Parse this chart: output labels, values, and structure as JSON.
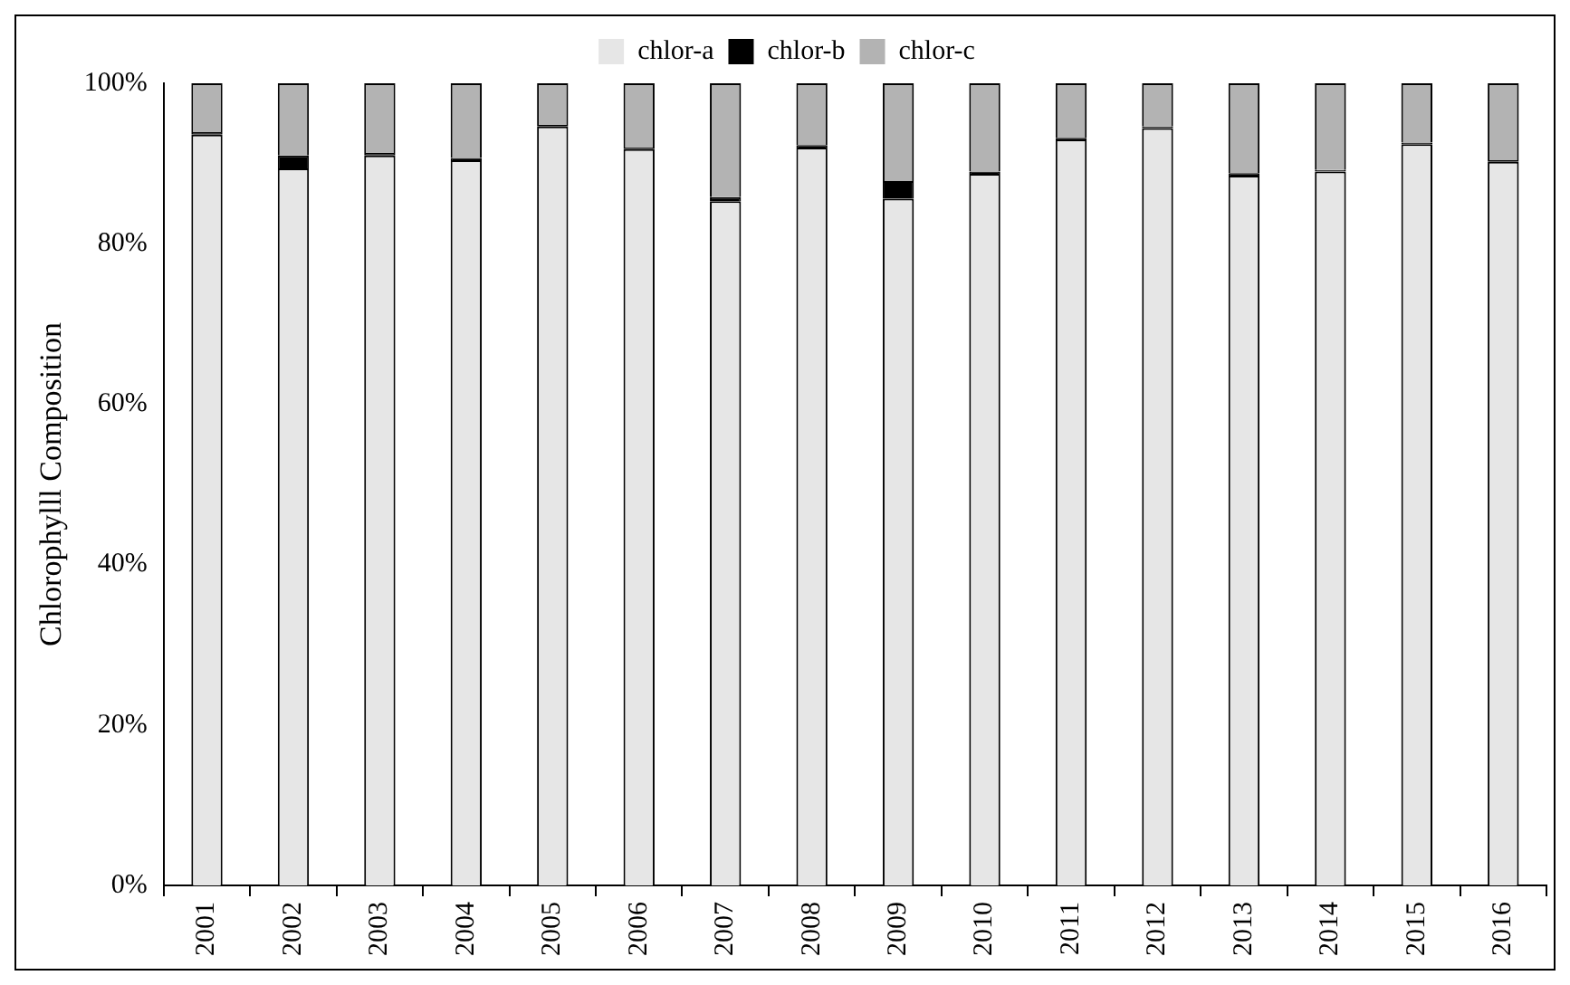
{
  "chart_data": {
    "type": "bar",
    "stacked": true,
    "ylabel": "Chlorophylll Composition",
    "categories": [
      "2001",
      "2002",
      "2003",
      "2004",
      "2005",
      "2006",
      "2007",
      "2008",
      "2009",
      "2010",
      "2011",
      "2012",
      "2013",
      "2014",
      "2015",
      "2016"
    ],
    "series": [
      {
        "name": "chlor-a",
        "color": "#e6e6e6",
        "values": [
          93.6,
          89.4,
          91.0,
          90.4,
          94.6,
          91.8,
          85.3,
          92.0,
          85.6,
          88.7,
          93.0,
          94.4,
          88.5,
          89.0,
          92.4,
          90.2
        ]
      },
      {
        "name": "chlor-b",
        "color": "#000000",
        "values": [
          0.3,
          1.6,
          0.3,
          0.3,
          0.2,
          0.2,
          0.5,
          0.3,
          2.2,
          0.3,
          0.2,
          0.2,
          0.3,
          0.2,
          0.2,
          0.2
        ]
      },
      {
        "name": "chlor-c",
        "color": "#b3b3b3",
        "values": [
          6.1,
          9.0,
          8.7,
          9.3,
          5.2,
          8.0,
          14.2,
          7.7,
          12.2,
          11.0,
          6.8,
          5.4,
          11.2,
          10.8,
          7.4,
          9.6
        ]
      }
    ],
    "ylim": [
      0,
      100
    ],
    "yticks": [
      {
        "value": 0,
        "label": "0%"
      },
      {
        "value": 20,
        "label": "20%"
      },
      {
        "value": 40,
        "label": "40%"
      },
      {
        "value": 60,
        "label": "60%"
      },
      {
        "value": 80,
        "label": "80%"
      },
      {
        "value": 100,
        "label": "100%"
      }
    ],
    "grid": false,
    "legend": "top"
  }
}
